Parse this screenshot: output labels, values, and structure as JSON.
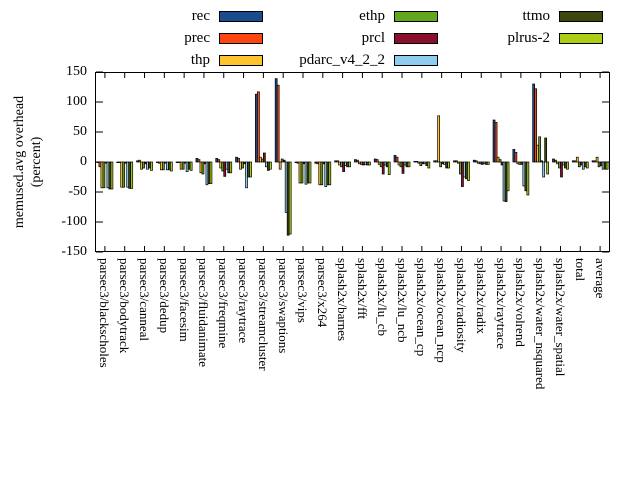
{
  "chart_data": {
    "type": "bar",
    "title": "",
    "ylabel_line1": "memused.avg overhead",
    "ylabel_line2": "(percent)",
    "ylim": [
      -150,
      150
    ],
    "yticks": [
      150,
      100,
      50,
      0,
      -50,
      -100,
      -150
    ],
    "grid": false,
    "legend_position": "top",
    "legend_columns": 3,
    "categories": [
      "parsec3/blackscholes",
      "parsec3/bodytrack",
      "parsec3/canneal",
      "parsec3/dedup",
      "parsec3/facesim",
      "parsec3/fluidanimate",
      "parsec3/freqmine",
      "parsec3/raytrace",
      "parsec3/streamcluster",
      "parsec3/swaptions",
      "parsec3/vips",
      "parsec3/x264",
      "splash2x/barnes",
      "splash2x/fft",
      "splash2x/lu_cb",
      "splash2x/lu_ncb",
      "splash2x/ocean_cp",
      "splash2x/ocean_ncp",
      "splash2x/radiosity",
      "splash2x/radix",
      "splash2x/raytrace",
      "splash2x/volrend",
      "splash2x/water_nsquared",
      "splash2x/water_spatial",
      "total",
      "average"
    ],
    "series": [
      {
        "name": "rec",
        "color": "#1a4b8c",
        "values": [
          -1,
          -1,
          2,
          -1,
          -1,
          6,
          6,
          8,
          113,
          139,
          -1,
          -2,
          2,
          4,
          5,
          11,
          1,
          2,
          2,
          3,
          70,
          21,
          130,
          5,
          2,
          2
        ]
      },
      {
        "name": "prec",
        "color": "#fb4612",
        "values": [
          -8,
          -1,
          3,
          -2,
          -1,
          4,
          4,
          6,
          117,
          128,
          -2,
          -3,
          2,
          3,
          4,
          8,
          1,
          2,
          2,
          2,
          66,
          16,
          122,
          3,
          2,
          2
        ]
      },
      {
        "name": "thp",
        "color": "#fdc42c",
        "values": [
          -43,
          -42,
          -12,
          -13,
          -12,
          -18,
          -10,
          -12,
          8,
          -12,
          -35,
          -38,
          -5,
          -3,
          -4,
          -5,
          -2,
          77,
          -2,
          -2,
          8,
          -3,
          28,
          -3,
          8,
          8
        ]
      },
      {
        "name": "ethp",
        "color": "#63a51c",
        "values": [
          -43,
          -42,
          -10,
          -13,
          -12,
          -20,
          -15,
          -10,
          5,
          5,
          -35,
          -38,
          -8,
          -4,
          -8,
          -8,
          -6,
          -8,
          -20,
          -3,
          4,
          -4,
          42,
          -10,
          -8,
          -8
        ]
      },
      {
        "name": "prcl",
        "color": "#8a0f2d",
        "values": [
          -2,
          -2,
          -3,
          -2,
          -2,
          -3,
          -24,
          -3,
          15,
          3,
          -3,
          -3,
          -16,
          -5,
          -20,
          -19,
          -3,
          -3,
          -41,
          -4,
          -5,
          -4,
          2,
          -25,
          -5,
          -6
        ]
      },
      {
        "name": "pdarc_v4_2_2",
        "color": "#90cbf0",
        "values": [
          -43,
          -42,
          -12,
          -13,
          -16,
          -38,
          -12,
          -43,
          -8,
          -84,
          -37,
          -41,
          -6,
          -4,
          -5,
          -5,
          -3,
          -4,
          -25,
          -3,
          -65,
          -40,
          -25,
          -5,
          -12,
          -12
        ]
      },
      {
        "name": "ttmo",
        "color": "#3e470f",
        "values": [
          -45,
          -44,
          -10,
          -13,
          -12,
          -36,
          -18,
          -25,
          -14,
          -122,
          -35,
          -38,
          -8,
          -5,
          -8,
          -8,
          -6,
          -10,
          -28,
          -4,
          -66,
          -48,
          40,
          -10,
          -8,
          -12
        ]
      },
      {
        "name": "plrus-2",
        "color": "#abce14",
        "values": [
          -45,
          -44,
          -14,
          -15,
          -14,
          -36,
          -18,
          -25,
          -12,
          -120,
          -35,
          -38,
          -8,
          -5,
          -21,
          -8,
          -10,
          -10,
          -31,
          -4,
          -48,
          -55,
          -20,
          -12,
          -10,
          -12
        ]
      }
    ]
  }
}
